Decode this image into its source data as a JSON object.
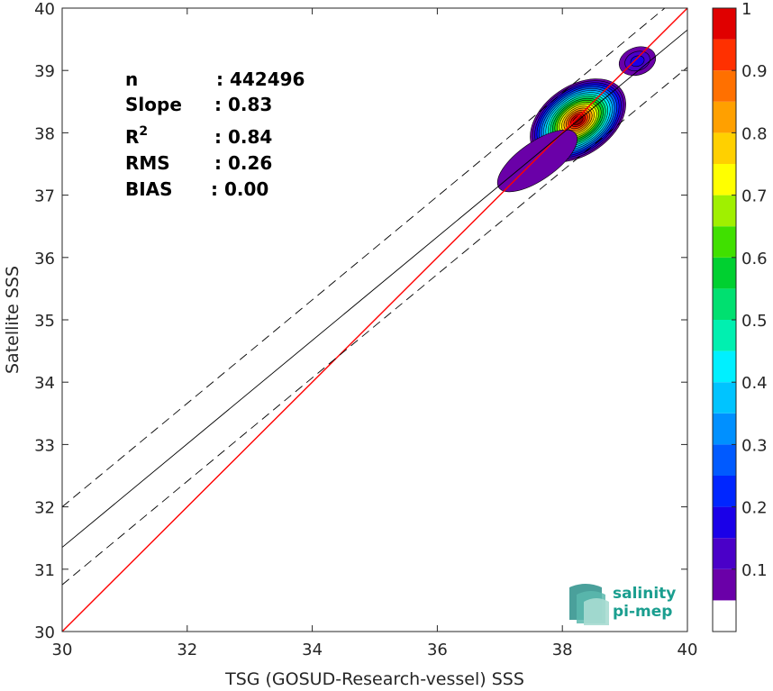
{
  "chart_data": {
    "type": "scatter",
    "subtype": "density-contour",
    "xlabel": "TSG (GOSUD-Research-vessel) SSS",
    "ylabel": "Satellite SSS",
    "xlim": [
      30,
      40
    ],
    "ylim": [
      30,
      40
    ],
    "xticks": [
      "30",
      "32",
      "34",
      "36",
      "38",
      "40"
    ],
    "yticks": [
      "30",
      "31",
      "32",
      "33",
      "34",
      "35",
      "36",
      "37",
      "38",
      "39",
      "40"
    ],
    "grid": false,
    "stats": [
      {
        "key": "n",
        "value": ": 442496"
      },
      {
        "key": "Slope",
        "value": ": 0.83"
      },
      {
        "key": "R",
        "sup": "2",
        "value": ": 0.84"
      },
      {
        "key": "RMS",
        "value": ": 0.26"
      },
      {
        "key": "BIAS",
        "value": ": 0.00"
      }
    ],
    "lines": [
      {
        "role": "one-to-one",
        "color": "#ff0000",
        "style": "solid",
        "slope": 1.0,
        "intercept": 0.0
      },
      {
        "role": "fit",
        "color": "#000000",
        "style": "solid",
        "slope": 0.83,
        "intercept": 6.45
      },
      {
        "role": "fit-upper",
        "color": "#000000",
        "style": "dashed",
        "slope": 0.83,
        "intercept": 7.1
      },
      {
        "role": "fit-lower",
        "color": "#000000",
        "style": "dashed",
        "slope": 0.83,
        "intercept": 5.85
      }
    ],
    "density_blobs": [
      {
        "cx": 38.25,
        "cy": 38.2,
        "rx": 0.85,
        "ry": 0.55,
        "rotation_deg": -35,
        "peak": 1.0
      },
      {
        "cx": 37.6,
        "cy": 37.55,
        "rx": 0.75,
        "ry": 0.3,
        "rotation_deg": -35,
        "peak": 0.05
      },
      {
        "cx": 39.2,
        "cy": 39.15,
        "rx": 0.3,
        "ry": 0.22,
        "rotation_deg": -20,
        "peak": 0.15
      }
    ],
    "colorbar": {
      "ticks": [
        "0.1",
        "0.2",
        "0.3",
        "0.4",
        "0.5",
        "0.6",
        "0.7",
        "0.8",
        "0.9",
        "1"
      ],
      "tick_values": [
        0.1,
        0.2,
        0.3,
        0.4,
        0.5,
        0.6,
        0.7,
        0.8,
        0.9,
        1.0
      ],
      "levels": [
        0,
        0.05,
        0.1,
        0.15,
        0.2,
        0.25,
        0.3,
        0.35,
        0.4,
        0.45,
        0.5,
        0.55,
        0.6,
        0.65,
        0.7,
        0.75,
        0.8,
        0.85,
        0.9,
        0.95,
        1.0
      ],
      "colors": [
        "#ffffff",
        "#6a00a8",
        "#4a00c8",
        "#1a00e8",
        "#0026ff",
        "#005aff",
        "#0090ff",
        "#00c4ff",
        "#00f0ff",
        "#00f0b0",
        "#00e070",
        "#00d030",
        "#40e000",
        "#a0f000",
        "#ffff00",
        "#ffd000",
        "#ffa000",
        "#ff7000",
        "#ff3000",
        "#e00000",
        "#900000"
      ]
    },
    "logo": {
      "line1": "salinity",
      "line2": "pi-mep"
    }
  }
}
